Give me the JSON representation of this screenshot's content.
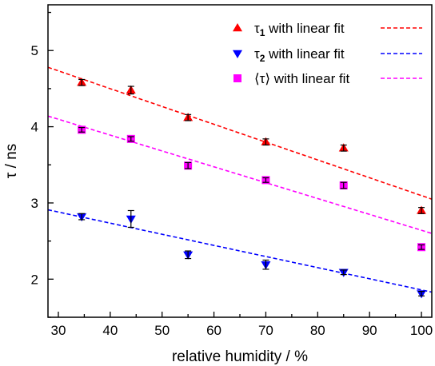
{
  "chart_data": {
    "type": "scatter",
    "title": "",
    "xlabel": "relative humidity / %",
    "ylabel": "τ / ns",
    "xlim": [
      28,
      102
    ],
    "ylim": [
      1.5,
      5.6
    ],
    "x_ticks": [
      30,
      40,
      50,
      60,
      70,
      80,
      90,
      100
    ],
    "y_ticks": [
      2,
      3,
      4,
      5
    ],
    "grid": false,
    "legend_position": "top-right",
    "series": [
      {
        "legend_symbol": "τ",
        "legend_subscript": "1",
        "legend_suffix": " with linear fit",
        "marker": "triangle-up",
        "color": "#ff0000",
        "x": [
          34.5,
          44,
          55,
          70,
          85,
          100
        ],
        "y": [
          4.58,
          4.48,
          4.12,
          3.8,
          3.72,
          2.9
        ],
        "err": [
          0.04,
          0.05,
          0.04,
          0.04,
          0.04,
          0.04
        ],
        "fit": {
          "x": [
            28,
            102
          ],
          "y": [
            4.78,
            3.05
          ]
        }
      },
      {
        "legend_symbol": "τ",
        "legend_subscript": "2",
        "legend_suffix": " with linear fit",
        "marker": "triangle-down",
        "color": "#0000ff",
        "x": [
          34.5,
          44,
          55,
          70,
          85,
          100
        ],
        "y": [
          2.82,
          2.79,
          2.32,
          2.19,
          2.09,
          1.81
        ],
        "err": [
          0.04,
          0.11,
          0.05,
          0.06,
          0.03,
          0.03
        ],
        "fit": {
          "x": [
            28,
            102
          ],
          "y": [
            2.91,
            1.83
          ]
        }
      },
      {
        "legend_symbol": "⟨τ⟩",
        "legend_subscript": "",
        "legend_suffix": " with linear fit",
        "marker": "square",
        "color": "#ff00ff",
        "x": [
          34.5,
          44,
          55,
          70,
          85,
          100
        ],
        "y": [
          3.96,
          3.84,
          3.49,
          3.3,
          3.23,
          2.42
        ],
        "err": [
          0.03,
          0.03,
          0.04,
          0.03,
          0.04,
          0.03
        ],
        "fit": {
          "x": [
            28,
            102
          ],
          "y": [
            4.14,
            2.6
          ]
        }
      }
    ]
  }
}
